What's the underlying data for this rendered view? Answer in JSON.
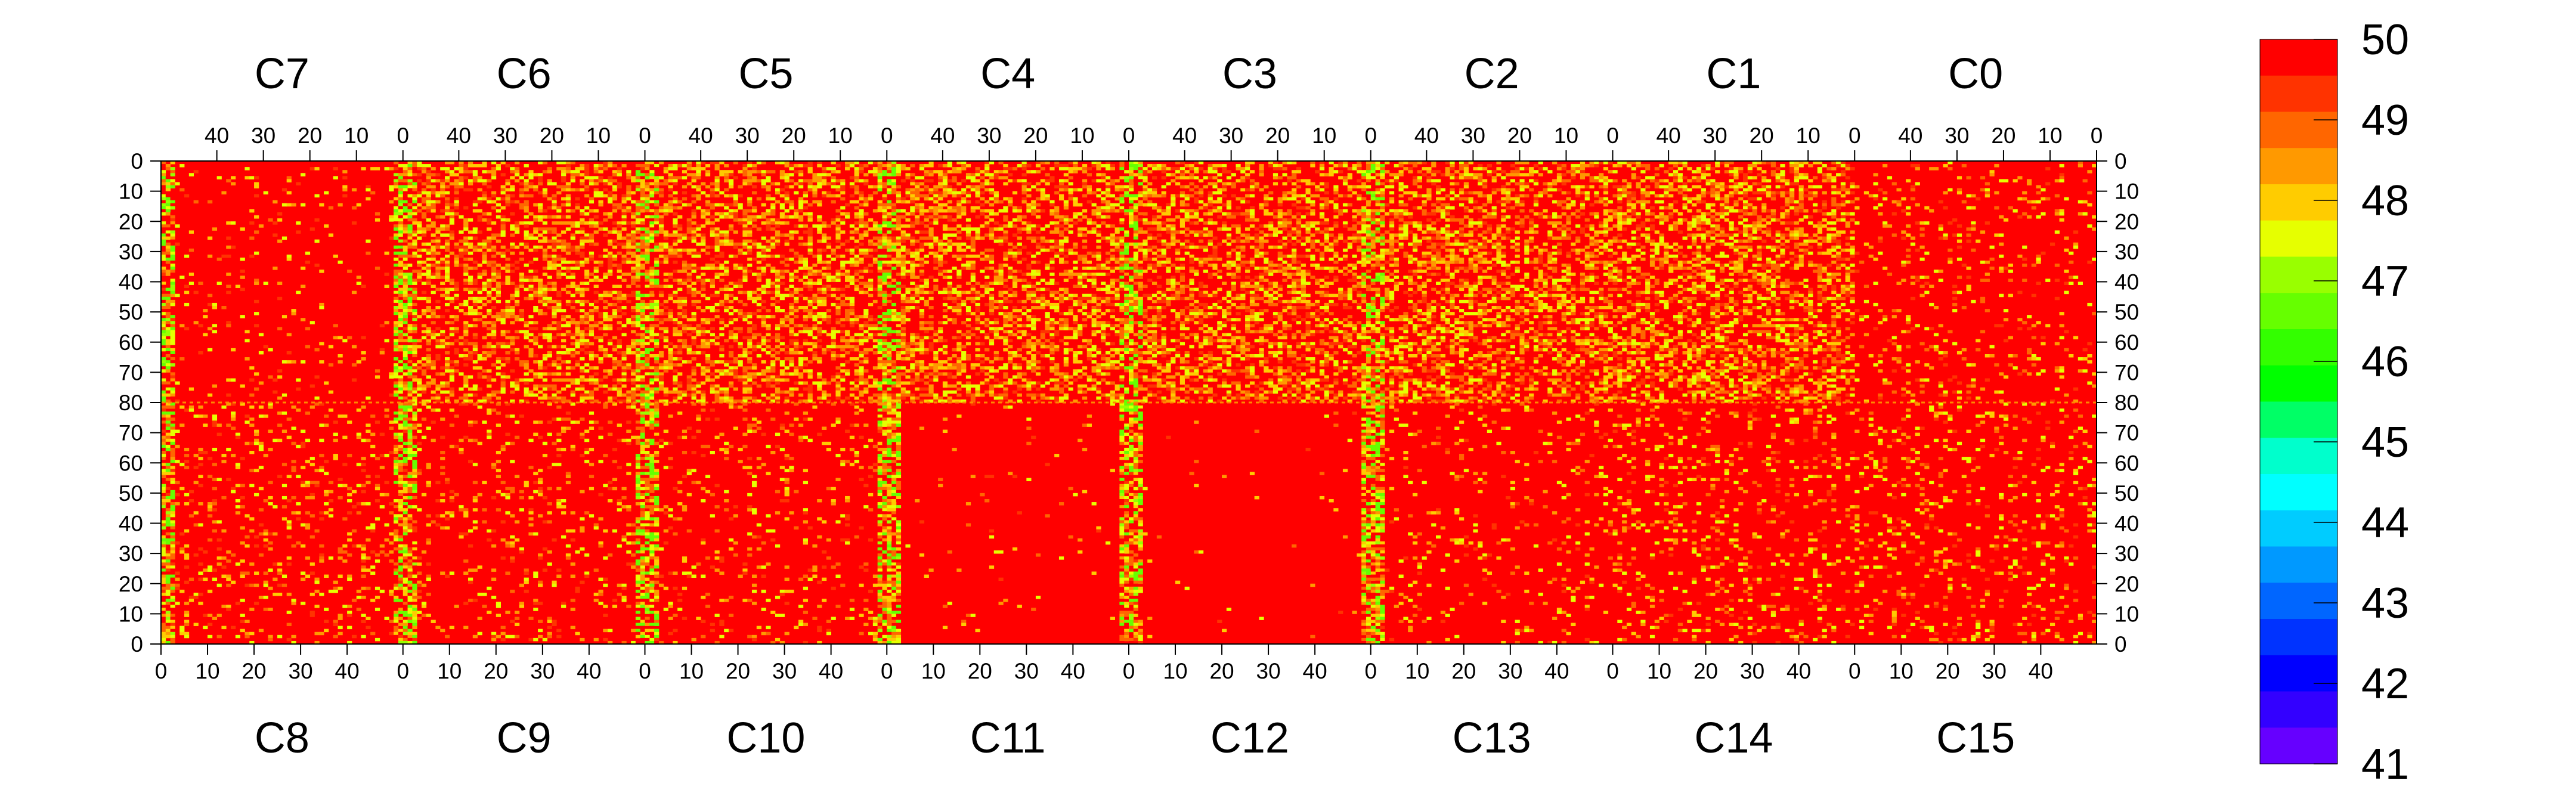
{
  "chart_data": {
    "type": "heatmap",
    "title": "",
    "xlabel": "",
    "ylabel": "",
    "zlim": [
      41,
      50
    ],
    "colorbar": {
      "ticks": [
        "50",
        "49",
        "48",
        "47",
        "46",
        "45",
        "44",
        "43",
        "42",
        "41"
      ],
      "colors": [
        "#ff0000",
        "#ff3300",
        "#ff6600",
        "#ff9900",
        "#ffcc00",
        "#e6ff00",
        "#99ff00",
        "#66ff00",
        "#33ff00",
        "#00ff00",
        "#00ff66",
        "#00ffcc",
        "#00ffff",
        "#00ccff",
        "#0099ff",
        "#0066ff",
        "#0033ff",
        "#0000ff",
        "#3300ff",
        "#6600ff"
      ]
    },
    "top_row_chips": [
      "C7",
      "C6",
      "C5",
      "C4",
      "C3",
      "C2",
      "C1",
      "C0"
    ],
    "bottom_row_chips": [
      "C8",
      "C9",
      "C10",
      "C11",
      "C12",
      "C13",
      "C14",
      "C15"
    ],
    "top_x_ticks": [
      "40",
      "30",
      "20",
      "10",
      "0"
    ],
    "bottom_x_ticks": [
      "0",
      "10",
      "20",
      "30",
      "40"
    ],
    "y_ticks_top": [
      "0",
      "10",
      "20",
      "30",
      "40",
      "50",
      "60",
      "70",
      "80"
    ],
    "y_ticks_bottom": [
      "70",
      "60",
      "50",
      "40",
      "30",
      "20",
      "10",
      "0"
    ],
    "columns_per_chip": 52,
    "rows_per_half": 80,
    "typical_value": 50,
    "band_positions": [
      0,
      52,
      104,
      156,
      208,
      260
    ],
    "chip_noise_level": [
      0.06,
      0.45,
      0.45,
      0.45,
      0.45,
      0.45,
      0.45,
      0.1,
      0.14,
      0.12,
      0.1,
      0.02,
      0.01,
      0.08,
      0.14,
      0.12
    ],
    "row80_line": true
  }
}
